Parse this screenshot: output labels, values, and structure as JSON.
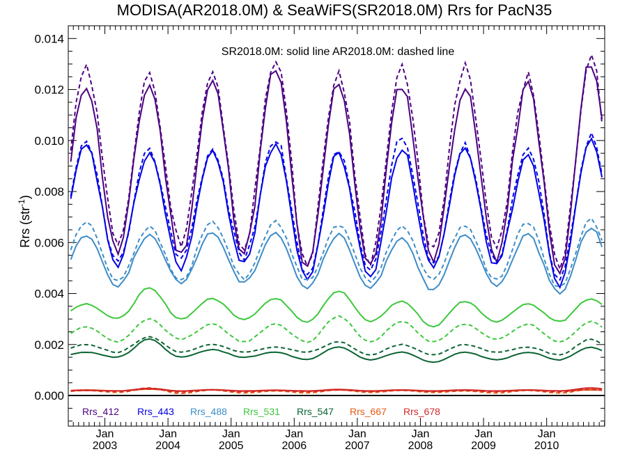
{
  "chart_data": {
    "type": "line",
    "title": "MODISA(AR2018.0M) & SeaWiFS(SR2018.0M)  Rrs for PacN35",
    "annotation": "SR2018.0M: solid line   AR2018.0M: dashed line",
    "ylabel_main": "Rrs (str",
    "ylabel_sup": "-1",
    "ylabel_tail": ")",
    "ylim": [
      -0.0012,
      0.0145
    ],
    "xlim": [
      2002.42,
      2010.92
    ],
    "yticks": [
      0.0,
      0.002,
      0.004,
      0.006,
      0.008,
      0.01,
      0.012,
      0.014
    ],
    "ytick_labels": [
      "0.000",
      "0.002",
      "0.004",
      "0.006",
      "0.008",
      "0.010",
      "0.012",
      "0.014"
    ],
    "xticks_top": [
      "Jan",
      "Jan",
      "Jan",
      "Jan",
      "Jan",
      "Jan",
      "Jan",
      "Jan"
    ],
    "xticks_bottom": [
      "2003",
      "2004",
      "2005",
      "2006",
      "2007",
      "2008",
      "2009",
      "2010"
    ],
    "xtick_values": [
      2003,
      2004,
      2005,
      2006,
      2007,
      2008,
      2009,
      2010
    ],
    "legend_position": "bottom-inside",
    "zero_line": 0,
    "series": [
      {
        "name": "Rrs_412",
        "color": "#4b0082",
        "peak": 0.012,
        "trough": 0.0056,
        "peak_month": 9.0,
        "solid_peaks": [
          0.0122,
          0.0122,
          0.0123,
          0.0128,
          0.0123,
          0.0122,
          0.0121,
          0.0122,
          0.0131
        ],
        "dashed_peaks": [
          0.0128,
          0.0125,
          0.0126,
          0.0133,
          0.0127,
          0.0128,
          0.0129,
          0.0125,
          0.0132
        ],
        "solid_troughs": [
          0.0056,
          0.0055,
          0.0056,
          0.0049,
          0.005,
          0.0054,
          0.0054,
          0.0047
        ],
        "dashed_troughs": [
          0.0061,
          0.006,
          0.0058,
          0.0051,
          0.0053,
          0.0057,
          0.0058,
          0.0049
        ]
      },
      {
        "name": "Rrs_443",
        "color": "#0000e6",
        "solid_peaks": [
          0.0098,
          0.0095,
          0.0095,
          0.0099,
          0.0095,
          0.0097,
          0.0096,
          0.0095,
          0.0102
        ],
        "dashed_peaks": [
          0.0099,
          0.0096,
          0.0096,
          0.0101,
          0.0096,
          0.0101,
          0.0098,
          0.0097,
          0.0102
        ],
        "solid_troughs": [
          0.0051,
          0.005,
          0.0052,
          0.0045,
          0.0046,
          0.005,
          0.0051,
          0.0044
        ],
        "dashed_troughs": [
          0.0052,
          0.0054,
          0.0054,
          0.0047,
          0.0049,
          0.0052,
          0.0053,
          0.0046
        ]
      },
      {
        "name": "Rrs_488",
        "color": "#3c8cc8",
        "solid_peaks": [
          0.0063,
          0.0063,
          0.0064,
          0.0064,
          0.0063,
          0.0062,
          0.0063,
          0.0063,
          0.0066
        ],
        "dashed_peaks": [
          0.0068,
          0.0066,
          0.0068,
          0.0068,
          0.0067,
          0.0066,
          0.0067,
          0.0068,
          0.0069
        ],
        "solid_troughs": [
          0.0043,
          0.0044,
          0.0044,
          0.0042,
          0.0042,
          0.0041,
          0.0043,
          0.004
        ],
        "dashed_troughs": [
          0.0045,
          0.0045,
          0.0046,
          0.0045,
          0.0045,
          0.0046,
          0.0045,
          0.0042
        ]
      },
      {
        "name": "Rrs_531",
        "color": "#3cc83c",
        "solid_peaks": [
          0.0036,
          0.0042,
          0.0038,
          0.0038,
          0.0041,
          0.0037,
          0.0037,
          0.0036,
          0.0038
        ],
        "dashed_peaks": [
          0.0027,
          0.003,
          0.0028,
          0.0028,
          0.0031,
          0.0029,
          0.0028,
          0.0028,
          0.0029
        ],
        "solid_troughs": [
          0.003,
          0.003,
          0.003,
          0.0029,
          0.0029,
          0.0027,
          0.0029,
          0.0029
        ],
        "dashed_troughs": [
          0.0021,
          0.0022,
          0.0021,
          0.0021,
          0.0021,
          0.0021,
          0.0022,
          0.0021
        ]
      },
      {
        "name": "Rrs_547",
        "color": "#0a6432",
        "solid_peaks": [
          0.0017,
          0.0022,
          0.0018,
          0.0017,
          0.0019,
          0.0017,
          0.0017,
          0.0017,
          0.0019
        ],
        "dashed_peaks": [
          0.002,
          0.0023,
          0.002,
          0.0019,
          0.0021,
          0.002,
          0.002,
          0.0019,
          0.0022
        ],
        "solid_troughs": [
          0.0015,
          0.0015,
          0.0015,
          0.0014,
          0.0014,
          0.0013,
          0.0014,
          0.0014
        ],
        "dashed_troughs": [
          0.0017,
          0.0017,
          0.0017,
          0.0017,
          0.0016,
          0.0016,
          0.0017,
          0.0016
        ]
      },
      {
        "name": "Rrs_667",
        "color": "#e65a14",
        "solid_peaks": [
          0.00022,
          0.00025,
          0.00022,
          0.0002,
          0.00022,
          0.00021,
          0.00021,
          0.00021,
          0.00022
        ],
        "dashed_peaks": [
          0.0002,
          0.0003,
          0.00022,
          0.00018,
          0.00022,
          0.0002,
          0.00018,
          0.0002,
          0.00024
        ],
        "solid_troughs": [
          0.00018,
          0.00017,
          0.00017,
          0.00017,
          0.00017,
          0.00017,
          0.00017,
          0.00018
        ],
        "dashed_troughs": [
          0.00012,
          8e-05,
          0.0001,
          0.0001,
          0.00012,
          0.00012,
          0.0001,
          0.0001
        ]
      },
      {
        "name": "Rrs_678",
        "color": "#d22828",
        "solid_peaks": [
          0.0002,
          0.00028,
          0.00023,
          0.00021,
          0.00024,
          0.00022,
          0.00022,
          0.00022,
          0.0003
        ],
        "dashed_peaks": [
          0.00021,
          0.00026,
          0.00022,
          0.0002,
          0.00022,
          0.00021,
          0.0002,
          0.00021,
          0.00024
        ],
        "solid_troughs": [
          0.00018,
          0.00018,
          0.00018,
          0.00018,
          0.00018,
          0.00018,
          0.00018,
          0.00018
        ],
        "dashed_troughs": [
          0.00016,
          0.00014,
          0.00015,
          0.00015,
          0.00016,
          0.00016,
          0.00015,
          0.00015
        ]
      }
    ]
  }
}
